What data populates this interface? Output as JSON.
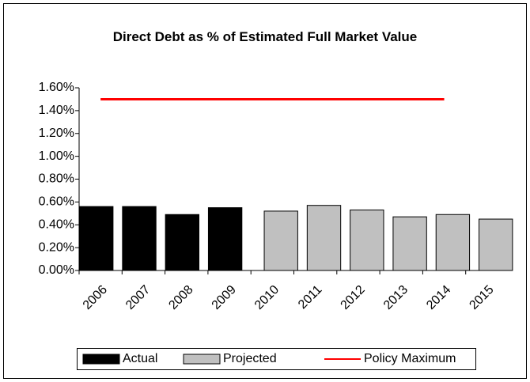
{
  "chart_data": {
    "type": "bar",
    "title": "Direct Debt as % of Estimated Full Market Value",
    "categories": [
      "2006",
      "2007",
      "2008",
      "2009",
      "2010",
      "2011",
      "2012",
      "2013",
      "2014",
      "2015"
    ],
    "series": [
      {
        "name": "Actual",
        "color": "#000000",
        "values": [
          0.56,
          0.56,
          0.49,
          0.55,
          null,
          null,
          null,
          null,
          null,
          null
        ]
      },
      {
        "name": "Projected",
        "color": "#c0c0c0",
        "values": [
          null,
          null,
          null,
          null,
          0.52,
          0.57,
          0.53,
          0.47,
          0.49,
          0.45
        ]
      },
      {
        "name": "Policy Maximum",
        "color": "#ff0000",
        "type": "line",
        "values": [
          1.5,
          1.5,
          1.5,
          1.5,
          1.5,
          1.5,
          1.5,
          1.5,
          1.5,
          null
        ]
      }
    ],
    "ylim": [
      0,
      1.6
    ],
    "yticks": [
      {
        "value": 0,
        "label": "0.00%"
      },
      {
        "value": 0.2,
        "label": "0.20%"
      },
      {
        "value": 0.4,
        "label": "0.40%"
      },
      {
        "value": 0.6,
        "label": "0.60%"
      },
      {
        "value": 0.8,
        "label": "0.80%"
      },
      {
        "value": 1.0,
        "label": "1.00%"
      },
      {
        "value": 1.2,
        "label": "1.20%"
      },
      {
        "value": 1.4,
        "label": "1.40%"
      },
      {
        "value": 1.6,
        "label": "1.60%"
      }
    ],
    "grid": false,
    "legend": "bottom"
  }
}
